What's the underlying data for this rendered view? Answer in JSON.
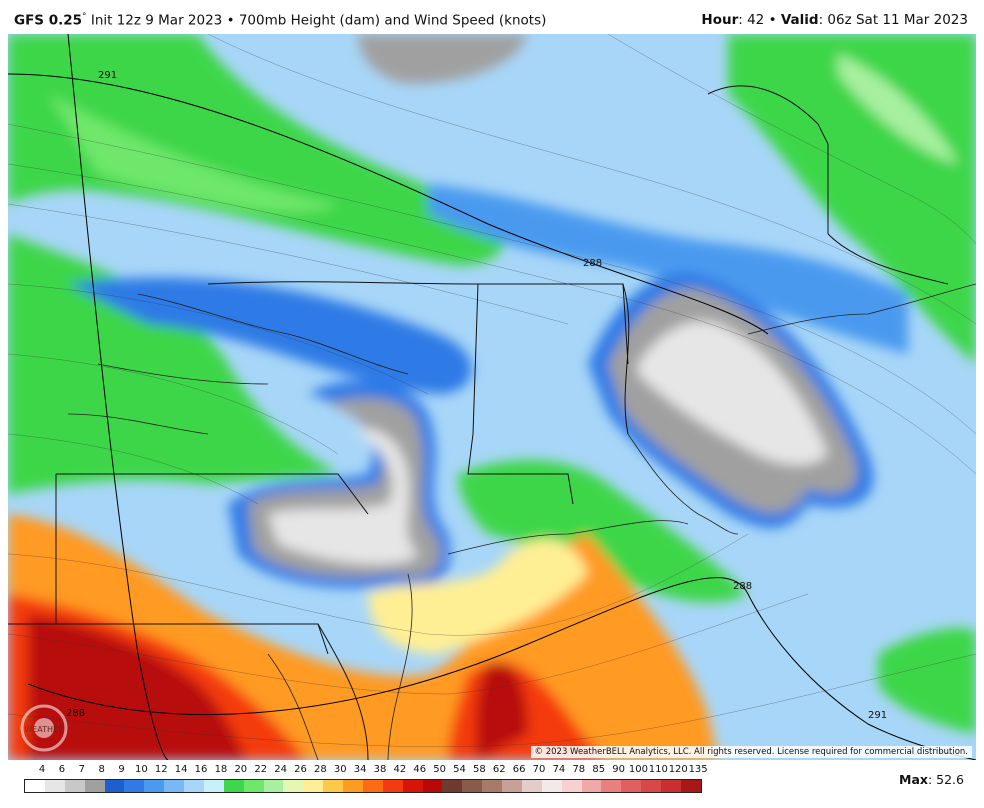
{
  "header": {
    "model": "GFS 0.25",
    "degree": "°",
    "init": "Init 12z 9 Mar 2023",
    "bullet": "•",
    "product": "700mb Height (dam) and Wind Speed (knots)",
    "hour_label": "Hour",
    "hour_value": ": 42",
    "valid_label": "Valid",
    "valid_value": ": 06z Sat 11 Mar 2023"
  },
  "map": {
    "copyright": "© 2023 WeatherBELL Analytics, LLC. All rights reserved. License required for commercial distribution.",
    "logo_text": "WEATHER",
    "contour_labels": [
      "291",
      "288",
      "288",
      "288",
      "291"
    ]
  },
  "legend": {
    "ticks": [
      "4",
      "6",
      "7",
      "8",
      "9",
      "10",
      "12",
      "14",
      "16",
      "18",
      "20",
      "22",
      "24",
      "26",
      "28",
      "30",
      "34",
      "38",
      "42",
      "46",
      "50",
      "54",
      "58",
      "62",
      "66",
      "70",
      "74",
      "78",
      "85",
      "90",
      "100",
      "110",
      "120",
      "135"
    ],
    "colors": [
      "#ffffff",
      "#e6e6e6",
      "#c8c8c8",
      "#a0a0a0",
      "#1e5fd0",
      "#2f7ae6",
      "#4a9aef",
      "#78b8f5",
      "#a8d6f8",
      "#c8f0fa",
      "#3ed64a",
      "#6ee76a",
      "#a8f0a0",
      "#e6f7b4",
      "#ffef94",
      "#ffc848",
      "#ff9a22",
      "#ff6a14",
      "#f43a10",
      "#d81408",
      "#b80808",
      "#6e3a30",
      "#8a5a4a",
      "#a87a6a",
      "#c8a098",
      "#e4ccc8",
      "#f4e8e8",
      "#f8d0d0",
      "#f0a8a8",
      "#e88080",
      "#e06060",
      "#d84848",
      "#c83030",
      "#a81818"
    ]
  },
  "footer": {
    "max_label": "Max",
    "max_value": ": 52.6"
  }
}
